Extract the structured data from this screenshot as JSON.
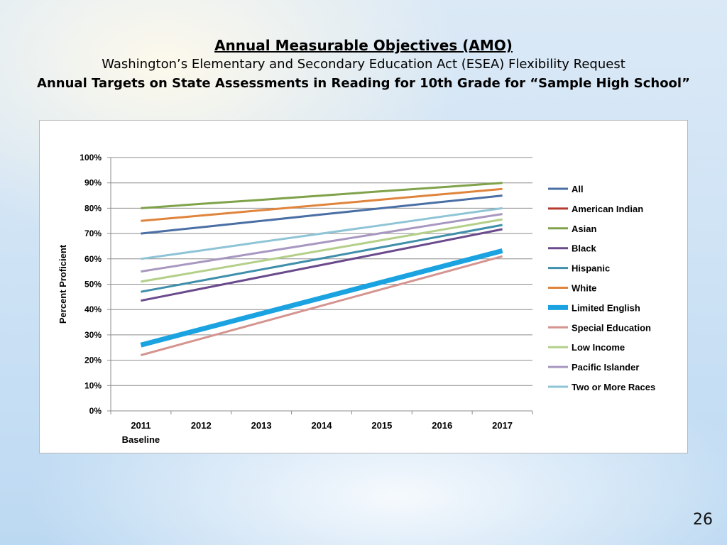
{
  "titles": {
    "line1": "Annual Measurable Objectives (AMO)",
    "line2": "Washington’s Elementary and Secondary Education Act (ESEA) Flexibility Request",
    "line3": "Annual Targets on State Assessments in Reading for 10th Grade for “Sample High School”"
  },
  "slide_number": "26",
  "chart_data": {
    "type": "line",
    "title": "",
    "xlabel": "",
    "ylabel": "Percent Proficient",
    "categories": [
      "2011",
      "2012",
      "2013",
      "2014",
      "2015",
      "2016",
      "2017"
    ],
    "baseline_label": "Baseline",
    "ylim": [
      0,
      100
    ],
    "yticks": [
      "0%",
      "10%",
      "20%",
      "30%",
      "40%",
      "50%",
      "60%",
      "70%",
      "80%",
      "90%",
      "100%"
    ],
    "grid": true,
    "legend_position": "right",
    "series": [
      {
        "name": "All",
        "color": "#4a6fa5",
        "values": [
          70,
          72.5,
          75,
          77.5,
          80,
          82.5,
          85
        ]
      },
      {
        "name": "American Indian",
        "color": "#b53a2f",
        "values": [
          null,
          null,
          null,
          null,
          null,
          null,
          null
        ]
      },
      {
        "name": "Asian",
        "color": "#7fa24a",
        "values": [
          80,
          81.7,
          83.3,
          85,
          86.7,
          88.3,
          90
        ]
      },
      {
        "name": "Black",
        "color": "#6a4a8c",
        "values": [
          43.5,
          48.2,
          52.9,
          57.6,
          62.3,
          67,
          71.7
        ]
      },
      {
        "name": "Hispanic",
        "color": "#3f8fab",
        "values": [
          47,
          51.4,
          55.8,
          60.2,
          64.6,
          69,
          73.4
        ]
      },
      {
        "name": "White",
        "color": "#e0843c",
        "values": [
          75,
          77.1,
          79.2,
          81.3,
          83.4,
          85.5,
          87.6
        ]
      },
      {
        "name": "Limited English",
        "color": "#1aa3e0",
        "values": [
          26,
          32.2,
          38.4,
          44.6,
          50.8,
          57,
          63.2
        ]
      },
      {
        "name": "Special Education",
        "color": "#d49490",
        "values": [
          22,
          28.5,
          35,
          41.5,
          48,
          54.5,
          61
        ]
      },
      {
        "name": "Low Income",
        "color": "#b3cf89",
        "values": [
          51,
          55.1,
          59.2,
          63.3,
          67.4,
          71.5,
          75.6
        ]
      },
      {
        "name": "Pacific Islander",
        "color": "#a897c0",
        "values": [
          55,
          58.8,
          62.6,
          66.4,
          70.2,
          74,
          77.7
        ]
      },
      {
        "name": "Two or More Races",
        "color": "#8ec4d6",
        "values": [
          60,
          63.3,
          66.7,
          70,
          73.3,
          76.7,
          80
        ]
      }
    ]
  }
}
